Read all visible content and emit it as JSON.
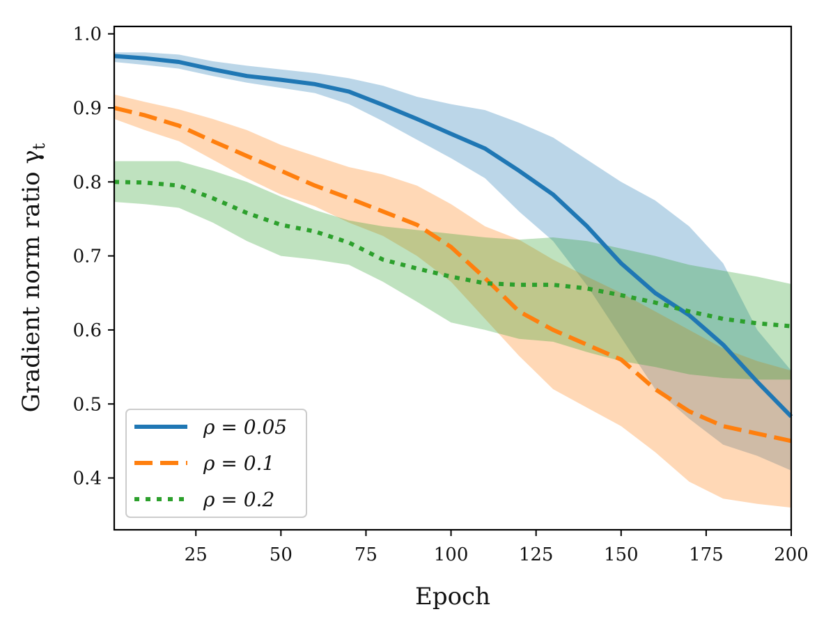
{
  "chart_data": {
    "type": "line",
    "title": "",
    "xlabel": "Epoch",
    "ylabel": "Gradient norm ratio γ",
    "ylabel_subscript": "t",
    "xlim": [
      1,
      200
    ],
    "ylim": [
      0.33,
      1.01
    ],
    "xticks": [
      25,
      50,
      75,
      100,
      125,
      150,
      175,
      200
    ],
    "yticks": [
      0.4,
      0.5,
      0.6,
      0.7,
      0.8,
      0.9,
      1.0
    ],
    "xtick_labels": [
      "25",
      "50",
      "75",
      "100",
      "125",
      "150",
      "175",
      "200"
    ],
    "ytick_labels": [
      "0.4",
      "0.5",
      "0.6",
      "0.7",
      "0.8",
      "0.9",
      "1.0"
    ],
    "grid": false,
    "legend_position": "lower-left",
    "x": [
      1,
      10,
      20,
      30,
      40,
      50,
      60,
      70,
      80,
      90,
      100,
      110,
      120,
      130,
      140,
      150,
      160,
      170,
      180,
      190,
      200
    ],
    "series": [
      {
        "name": "ρ = 0.05",
        "color": "#1f77b4",
        "style": "solid",
        "values": [
          0.97,
          0.967,
          0.962,
          0.952,
          0.943,
          0.938,
          0.932,
          0.922,
          0.904,
          0.885,
          0.865,
          0.845,
          0.815,
          0.783,
          0.74,
          0.69,
          0.65,
          0.62,
          0.58,
          0.53,
          0.483
        ],
        "lower": [
          0.962,
          0.958,
          0.953,
          0.943,
          0.934,
          0.927,
          0.92,
          0.905,
          0.882,
          0.857,
          0.832,
          0.805,
          0.76,
          0.72,
          0.66,
          0.59,
          0.52,
          0.48,
          0.445,
          0.43,
          0.41
        ],
        "upper": [
          0.975,
          0.975,
          0.972,
          0.963,
          0.957,
          0.952,
          0.947,
          0.94,
          0.93,
          0.915,
          0.905,
          0.897,
          0.88,
          0.86,
          0.83,
          0.8,
          0.775,
          0.74,
          0.69,
          0.6,
          0.545
        ]
      },
      {
        "name": "ρ = 0.1",
        "color": "#ff7f0e",
        "style": "dashed",
        "values": [
          0.9,
          0.89,
          0.876,
          0.855,
          0.835,
          0.815,
          0.795,
          0.778,
          0.76,
          0.742,
          0.712,
          0.67,
          0.625,
          0.6,
          0.58,
          0.56,
          0.52,
          0.49,
          0.47,
          0.46,
          0.45
        ],
        "lower": [
          0.885,
          0.87,
          0.855,
          0.83,
          0.805,
          0.783,
          0.767,
          0.745,
          0.727,
          0.7,
          0.665,
          0.615,
          0.565,
          0.52,
          0.495,
          0.47,
          0.435,
          0.395,
          0.372,
          0.365,
          0.36
        ],
        "upper": [
          0.918,
          0.908,
          0.898,
          0.885,
          0.87,
          0.85,
          0.835,
          0.82,
          0.81,
          0.795,
          0.77,
          0.74,
          0.722,
          0.695,
          0.672,
          0.65,
          0.625,
          0.6,
          0.575,
          0.558,
          0.545
        ]
      },
      {
        "name": "ρ = 0.2",
        "color": "#2ca02c",
        "style": "dotted",
        "values": [
          0.8,
          0.799,
          0.795,
          0.778,
          0.758,
          0.742,
          0.733,
          0.718,
          0.695,
          0.683,
          0.672,
          0.663,
          0.661,
          0.661,
          0.656,
          0.647,
          0.637,
          0.625,
          0.615,
          0.609,
          0.605
        ],
        "lower": [
          0.773,
          0.77,
          0.765,
          0.745,
          0.72,
          0.7,
          0.695,
          0.688,
          0.665,
          0.638,
          0.61,
          0.6,
          0.588,
          0.584,
          0.57,
          0.558,
          0.55,
          0.54,
          0.535,
          0.533,
          0.533
        ],
        "upper": [
          0.828,
          0.828,
          0.828,
          0.815,
          0.8,
          0.78,
          0.762,
          0.748,
          0.74,
          0.735,
          0.73,
          0.725,
          0.722,
          0.725,
          0.72,
          0.71,
          0.7,
          0.688,
          0.68,
          0.672,
          0.662
        ]
      }
    ]
  }
}
